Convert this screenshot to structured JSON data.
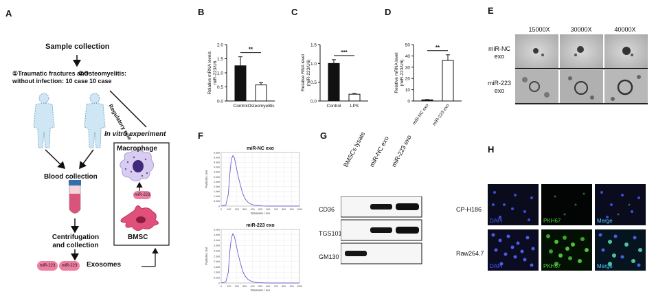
{
  "panels": {
    "A": {
      "label": "A",
      "sample_collection": "Sample collection",
      "group1_line1": "①Traumatic fractures and",
      "group1_line2": "without infection: 10 case",
      "group2_line1": "②Osteomyelitis:",
      "group2_line2": "10 case",
      "regulatory_role": "Regulatory role",
      "in_vitro": "In vitro experiment",
      "macrophage": "Macrophage",
      "mir223_badge": "miR-223",
      "bmsc": "BMSC",
      "blood_collection": "Blood collection",
      "centrifugation_line1": "Centrifugation",
      "centrifugation_line2": "and collection",
      "exosome_badge_1": "miR-223",
      "exosome_badge_2": "miR-223",
      "exosomes": "Exosomes"
    },
    "B": {
      "label": "B"
    },
    "C": {
      "label": "C"
    },
    "D": {
      "label": "D"
    },
    "E": {
      "label": "E",
      "magnifications": [
        "15000X",
        "30000X",
        "40000X"
      ],
      "rows": [
        {
          "line1": "miR-NC",
          "line2": "exo"
        },
        {
          "line1": "miR-223",
          "line2": "exo"
        }
      ]
    },
    "F": {
      "label": "F"
    },
    "G": {
      "label": "G",
      "lanes": [
        "BMSCs lysate",
        "miR-NC exo",
        "miR-223 exo"
      ],
      "proteins": [
        "CD36",
        "TGS101",
        "GM130"
      ]
    },
    "H": {
      "label": "H",
      "rows": [
        "CP-H186",
        "Raw264.7"
      ],
      "channels": [
        "DAPI",
        "PKH67",
        "Merge"
      ]
    }
  },
  "chart_data": [
    {
      "panel": "B",
      "type": "bar",
      "categories": [
        "Control",
        "Osteomyelitis"
      ],
      "values": [
        1.25,
        0.57
      ],
      "errors": [
        0.32,
        0.08
      ],
      "ylabel_line1": "Relative mRNA levels",
      "ylabel_line2": "miR-223/U6",
      "ylim": [
        0,
        2.0
      ],
      "yticks": [
        "0.0",
        "0.5",
        "1.0",
        "1.5",
        "2.0"
      ],
      "significance": "**",
      "bar_colors": [
        "#111111",
        "#ffffff"
      ]
    },
    {
      "panel": "C",
      "type": "bar",
      "categories": [
        "Control",
        "LPS"
      ],
      "values": [
        1.0,
        0.18
      ],
      "errors": [
        0.1,
        0.02
      ],
      "ylabel_line1": "Relative RNA level",
      "ylabel_line2": "(miR-223/U6)",
      "ylim": [
        0,
        1.5
      ],
      "yticks": [
        "0.0",
        "0.5",
        "1.0",
        "1.5"
      ],
      "significance": "***",
      "bar_colors": [
        "#111111",
        "#ffffff"
      ]
    },
    {
      "panel": "D",
      "type": "bar",
      "categories": [
        "miR-NC exo",
        "miR-223 exo"
      ],
      "values": [
        1.0,
        36
      ],
      "errors": [
        0.3,
        5
      ],
      "ylabel_line1": "Relative mRNA level",
      "ylabel_line2": "(miR-223/U6)",
      "ylim": [
        0,
        50
      ],
      "yticks": [
        "0",
        "10",
        "20",
        "30",
        "40",
        "50"
      ],
      "significance": "**",
      "bar_colors": [
        "#111111",
        "#ffffff"
      ]
    },
    {
      "panel": "F",
      "type": "line",
      "title": "miR-NC exo",
      "xlabel": "Diameter / nm",
      "ylabel": "Particles / ml",
      "xlim": [
        0,
        1000
      ],
      "ylim": [
        0,
        5.5
      ],
      "xticks": [
        "0",
        "100",
        "200",
        "300",
        "400",
        "500",
        "600",
        "700",
        "800",
        "900",
        "1000"
      ],
      "yticks": [
        "0",
        "5.0e5",
        "1.0e6",
        "1.5e6",
        "2.0e6",
        "2.5e6",
        "3.0e6",
        "3.5e6",
        "4.0e6",
        "4.5e6",
        "5.0e6",
        "5.5e6"
      ],
      "x": [
        0,
        60,
        90,
        110,
        130,
        150,
        170,
        190,
        210,
        240,
        270,
        300,
        340,
        380,
        420,
        470,
        520,
        600,
        700,
        800,
        900,
        1000
      ],
      "y": [
        0,
        0.1,
        1.2,
        3.2,
        4.8,
        5.2,
        4.9,
        4.1,
        3.3,
        2.3,
        1.4,
        0.8,
        0.4,
        0.2,
        0.1,
        0.05,
        0.02,
        0,
        0,
        0,
        0,
        0
      ],
      "line_color": "#6a5fd1"
    },
    {
      "panel": "F",
      "type": "line",
      "title": "miR-223 exo",
      "xlabel": "Diameter / nm",
      "ylabel": "Particles / ml",
      "xlim": [
        0,
        1000
      ],
      "ylim": [
        0,
        5.0
      ],
      "xticks": [
        "0",
        "100",
        "200",
        "300",
        "400",
        "500",
        "600",
        "700",
        "800",
        "900",
        "1000"
      ],
      "yticks": [
        "0",
        "5.0e5",
        "1.0e6",
        "1.5e6",
        "2.0e6",
        "2.5e6",
        "3.0e6",
        "3.5e6",
        "4.0e6",
        "4.5e6",
        "5.0e6"
      ],
      "x": [
        0,
        60,
        90,
        110,
        130,
        150,
        170,
        190,
        210,
        240,
        270,
        300,
        340,
        380,
        420,
        470,
        520,
        600,
        700,
        800,
        900,
        1000
      ],
      "y": [
        0,
        0.1,
        1.0,
        2.9,
        4.2,
        4.6,
        4.3,
        3.6,
        2.9,
        2.0,
        1.2,
        0.7,
        0.35,
        0.18,
        0.08,
        0.04,
        0.02,
        0,
        0,
        0,
        0,
        0
      ],
      "line_color": "#6a5fd1"
    }
  ]
}
